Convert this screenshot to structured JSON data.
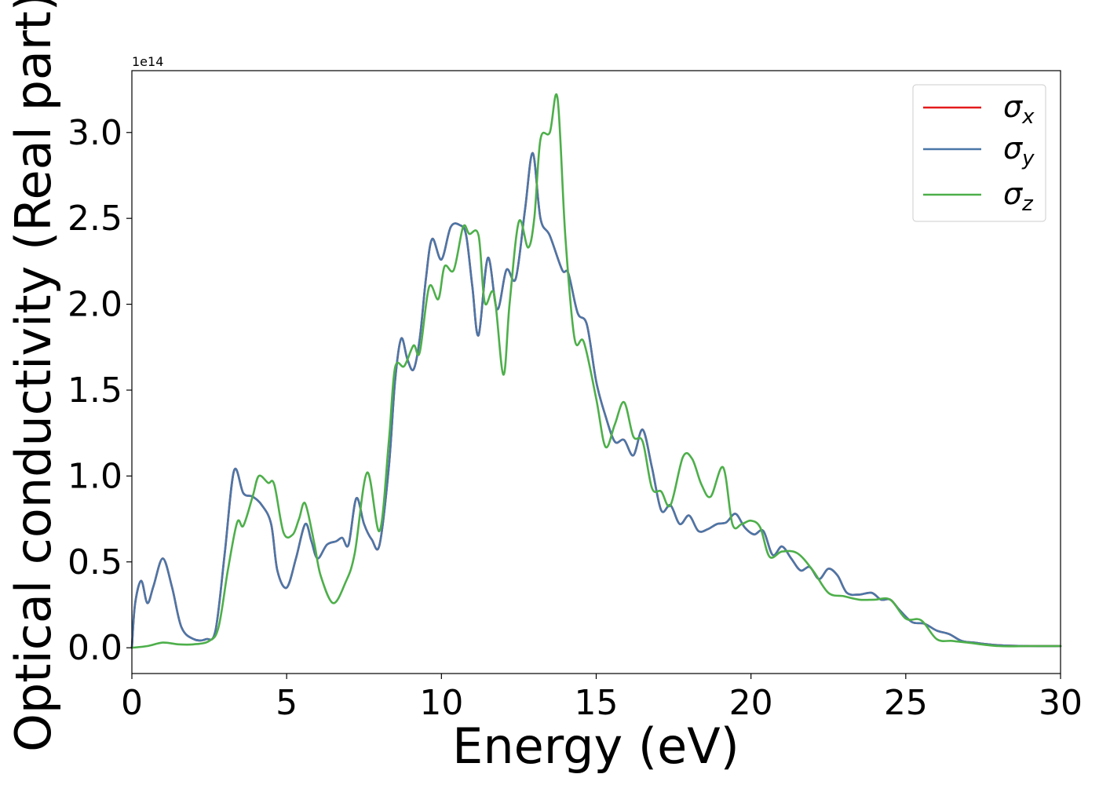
{
  "chart_data": {
    "type": "line",
    "title": "",
    "xlabel": "Energy (eV)",
    "ylabel": "Optical conductivity (Real part)",
    "y_offset_label": "1e14",
    "xlim": [
      0,
      30
    ],
    "ylim": [
      -0.15,
      3.36
    ],
    "x_ticks": [
      0,
      5,
      10,
      15,
      20,
      25,
      30
    ],
    "x_tick_labels": [
      "0",
      "5",
      "10",
      "15",
      "20",
      "25",
      "30"
    ],
    "y_ticks": [
      0.0,
      0.5,
      1.0,
      1.5,
      2.0,
      2.5,
      3.0
    ],
    "y_tick_labels": [
      "0.0",
      "0.5",
      "1.0",
      "1.5",
      "2.0",
      "2.5",
      "3.0"
    ],
    "grid": false,
    "legend_position": "top-right",
    "series": [
      {
        "name": "σx",
        "legend_symbol": "σ",
        "legend_subscript": "x",
        "color": "#e41a1c",
        "x": [
          0,
          0.1,
          0.3,
          0.5,
          0.7,
          1.0,
          1.3,
          1.6,
          2.0,
          2.4,
          2.7,
          3.0,
          3.3,
          3.6,
          3.9,
          4.2,
          4.5,
          4.7,
          5.0,
          5.3,
          5.6,
          5.8,
          6.0,
          6.3,
          6.6,
          6.8,
          7.0,
          7.25,
          7.5,
          7.75,
          8.0,
          8.3,
          8.5,
          8.7,
          8.9,
          9.1,
          9.3,
          9.5,
          9.7,
          10.0,
          10.3,
          10.6,
          10.8,
          11.0,
          11.2,
          11.5,
          11.8,
          12.1,
          12.4,
          12.7,
          12.95,
          13.2,
          13.5,
          13.9,
          14.1,
          14.4,
          14.7,
          15.0,
          15.3,
          15.6,
          15.9,
          16.2,
          16.5,
          16.8,
          17.1,
          17.4,
          17.7,
          18.0,
          18.3,
          18.6,
          18.9,
          19.2,
          19.5,
          19.8,
          20.1,
          20.4,
          20.7,
          21.0,
          21.3,
          21.6,
          21.9,
          22.2,
          22.5,
          22.8,
          23.1,
          23.5,
          23.9,
          24.2,
          24.5,
          24.8,
          25.2,
          25.6,
          26.0,
          26.4,
          26.8,
          27.2,
          28.0,
          29.0,
          30.0
        ],
        "values": [
          0.0,
          0.25,
          0.39,
          0.26,
          0.36,
          0.52,
          0.35,
          0.12,
          0.05,
          0.05,
          0.1,
          0.55,
          1.03,
          0.9,
          0.88,
          0.83,
          0.72,
          0.45,
          0.35,
          0.52,
          0.72,
          0.62,
          0.52,
          0.6,
          0.62,
          0.64,
          0.6,
          0.87,
          0.72,
          0.63,
          0.6,
          1.05,
          1.55,
          1.8,
          1.68,
          1.62,
          1.8,
          2.15,
          2.38,
          2.26,
          2.45,
          2.46,
          2.4,
          2.1,
          1.82,
          2.27,
          1.97,
          2.2,
          2.15,
          2.55,
          2.88,
          2.5,
          2.4,
          2.2,
          2.18,
          1.95,
          1.88,
          1.55,
          1.35,
          1.2,
          1.21,
          1.12,
          1.27,
          1.05,
          0.8,
          0.83,
          0.72,
          0.77,
          0.68,
          0.69,
          0.72,
          0.73,
          0.78,
          0.7,
          0.66,
          0.68,
          0.54,
          0.59,
          0.52,
          0.45,
          0.47,
          0.4,
          0.46,
          0.42,
          0.32,
          0.31,
          0.32,
          0.28,
          0.28,
          0.22,
          0.15,
          0.14,
          0.1,
          0.08,
          0.04,
          0.03,
          0.015,
          0.01,
          0.01
        ]
      },
      {
        "name": "σy",
        "legend_symbol": "σ",
        "legend_subscript": "y",
        "color": "#4a77a8",
        "x": [
          0,
          0.1,
          0.3,
          0.5,
          0.7,
          1.0,
          1.3,
          1.6,
          2.0,
          2.4,
          2.7,
          3.0,
          3.3,
          3.6,
          3.9,
          4.2,
          4.5,
          4.7,
          5.0,
          5.3,
          5.6,
          5.8,
          6.0,
          6.3,
          6.6,
          6.8,
          7.0,
          7.25,
          7.5,
          7.75,
          8.0,
          8.3,
          8.5,
          8.7,
          8.9,
          9.1,
          9.3,
          9.5,
          9.7,
          10.0,
          10.3,
          10.6,
          10.8,
          11.0,
          11.2,
          11.5,
          11.8,
          12.1,
          12.4,
          12.7,
          12.95,
          13.2,
          13.5,
          13.9,
          14.1,
          14.4,
          14.7,
          15.0,
          15.3,
          15.6,
          15.9,
          16.2,
          16.5,
          16.8,
          17.1,
          17.4,
          17.7,
          18.0,
          18.3,
          18.6,
          18.9,
          19.2,
          19.5,
          19.8,
          20.1,
          20.4,
          20.7,
          21.0,
          21.3,
          21.6,
          21.9,
          22.2,
          22.5,
          22.8,
          23.1,
          23.5,
          23.9,
          24.2,
          24.5,
          24.8,
          25.2,
          25.6,
          26.0,
          26.4,
          26.8,
          27.2,
          28.0,
          29.0,
          30.0
        ],
        "values": [
          0.0,
          0.25,
          0.39,
          0.26,
          0.36,
          0.52,
          0.35,
          0.12,
          0.05,
          0.05,
          0.1,
          0.55,
          1.03,
          0.9,
          0.88,
          0.83,
          0.72,
          0.45,
          0.35,
          0.52,
          0.72,
          0.62,
          0.52,
          0.6,
          0.62,
          0.64,
          0.6,
          0.87,
          0.72,
          0.63,
          0.6,
          1.05,
          1.55,
          1.8,
          1.68,
          1.62,
          1.8,
          2.15,
          2.38,
          2.26,
          2.45,
          2.46,
          2.4,
          2.1,
          1.82,
          2.27,
          1.97,
          2.2,
          2.15,
          2.55,
          2.88,
          2.5,
          2.4,
          2.2,
          2.18,
          1.95,
          1.88,
          1.55,
          1.35,
          1.2,
          1.21,
          1.12,
          1.27,
          1.05,
          0.8,
          0.83,
          0.72,
          0.77,
          0.68,
          0.69,
          0.72,
          0.73,
          0.78,
          0.7,
          0.66,
          0.68,
          0.54,
          0.59,
          0.52,
          0.45,
          0.47,
          0.4,
          0.46,
          0.42,
          0.32,
          0.31,
          0.32,
          0.28,
          0.28,
          0.22,
          0.15,
          0.14,
          0.1,
          0.08,
          0.04,
          0.03,
          0.015,
          0.01,
          0.01
        ]
      },
      {
        "name": "σz",
        "legend_symbol": "σ",
        "legend_subscript": "z",
        "color": "#4daf4a",
        "x": [
          0,
          0.5,
          1.0,
          1.5,
          2.0,
          2.5,
          2.8,
          3.1,
          3.4,
          3.6,
          3.9,
          4.1,
          4.4,
          4.6,
          4.9,
          5.2,
          5.4,
          5.6,
          5.9,
          6.1,
          6.5,
          6.9,
          7.2,
          7.6,
          8.0,
          8.3,
          8.5,
          8.8,
          9.1,
          9.3,
          9.6,
          9.9,
          10.1,
          10.4,
          10.7,
          10.9,
          11.2,
          11.4,
          11.7,
          12.0,
          12.2,
          12.5,
          12.8,
          13.0,
          13.2,
          13.5,
          13.75,
          14.0,
          14.3,
          14.6,
          15.0,
          15.3,
          15.6,
          15.9,
          16.2,
          16.5,
          16.8,
          17.1,
          17.4,
          17.8,
          18.1,
          18.4,
          18.7,
          19.1,
          19.4,
          19.7,
          20.0,
          20.3,
          20.6,
          21.0,
          21.5,
          22.0,
          22.5,
          23.0,
          23.5,
          24.0,
          24.5,
          25.0,
          25.5,
          26.0,
          26.5,
          27.0,
          28.0,
          29.0,
          30.0
        ],
        "values": [
          0.0,
          0.01,
          0.03,
          0.02,
          0.02,
          0.04,
          0.12,
          0.45,
          0.73,
          0.71,
          0.88,
          1.0,
          0.96,
          0.95,
          0.67,
          0.66,
          0.75,
          0.84,
          0.6,
          0.42,
          0.26,
          0.38,
          0.55,
          1.02,
          0.68,
          1.2,
          1.63,
          1.64,
          1.76,
          1.72,
          2.1,
          2.03,
          2.22,
          2.2,
          2.45,
          2.41,
          2.4,
          2.01,
          2.06,
          1.59,
          2.0,
          2.48,
          2.33,
          2.5,
          2.96,
          3.0,
          3.2,
          2.4,
          1.8,
          1.78,
          1.45,
          1.17,
          1.3,
          1.43,
          1.23,
          1.2,
          0.93,
          0.91,
          0.83,
          1.11,
          1.1,
          0.95,
          0.88,
          1.05,
          0.72,
          0.72,
          0.74,
          0.7,
          0.53,
          0.56,
          0.55,
          0.45,
          0.32,
          0.3,
          0.28,
          0.28,
          0.28,
          0.17,
          0.16,
          0.05,
          0.04,
          0.03,
          0.01,
          0.01,
          0.01
        ]
      }
    ]
  }
}
